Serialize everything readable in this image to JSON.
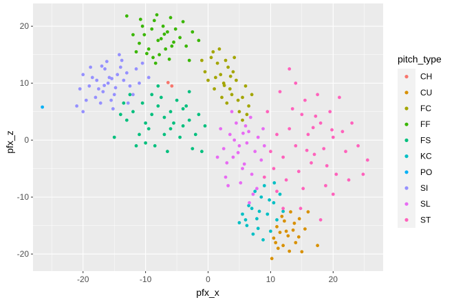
{
  "chart_data": {
    "type": "scatter",
    "xlabel": "pfx_x",
    "ylabel": "pfx_z",
    "xlim": [
      -28,
      28
    ],
    "ylim": [
      -23,
      24
    ],
    "x_ticks": [
      -20,
      -10,
      0,
      10,
      20
    ],
    "y_ticks": [
      -20,
      -10,
      0,
      10,
      20
    ],
    "grid": true,
    "background": "#ebebeb",
    "legend": {
      "title": "pitch_type",
      "position": "right"
    },
    "series": [
      {
        "name": "CH",
        "color": "#F8766D",
        "points": [
          [
            -6.4,
            10.1
          ],
          [
            -5.8,
            9.5
          ]
        ]
      },
      {
        "name": "CU",
        "color": "#D89000",
        "points": [
          [
            11.0,
            -15.2
          ],
          [
            12.5,
            -16.0
          ],
          [
            13.8,
            -14.6
          ],
          [
            10.5,
            -17.2
          ],
          [
            12.0,
            -18.5
          ],
          [
            14.5,
            -17.0
          ],
          [
            11.8,
            -13.4
          ],
          [
            13.0,
            -19.5
          ],
          [
            10.2,
            -20.8
          ],
          [
            15.5,
            -15.6
          ],
          [
            12.8,
            -16.8
          ],
          [
            11.5,
            -16.2
          ],
          [
            14.0,
            -18.0
          ],
          [
            13.2,
            -12.6
          ],
          [
            16.0,
            -12.6
          ],
          [
            15.0,
            -19.6
          ],
          [
            12.2,
            -14.2
          ],
          [
            10.8,
            -18.0
          ],
          [
            13.6,
            -15.8
          ],
          [
            14.6,
            -13.8
          ],
          [
            17.5,
            -18.5
          ],
          [
            11.2,
            -19.0
          ]
        ]
      },
      {
        "name": "FC",
        "color": "#A3A500",
        "points": [
          [
            2.0,
            11.5
          ],
          [
            3.5,
            9.0
          ],
          [
            1.5,
            13.5
          ],
          [
            4.0,
            12.0
          ],
          [
            5.5,
            7.5
          ],
          [
            2.5,
            10.0
          ],
          [
            0.5,
            14.5
          ],
          [
            3.0,
            6.5
          ],
          [
            4.5,
            10.5
          ],
          [
            6.0,
            9.5
          ],
          [
            1.0,
            9.0
          ],
          [
            2.8,
            14.0
          ],
          [
            -0.5,
            12.0
          ],
          [
            5.0,
            5.0
          ],
          [
            3.8,
            8.0
          ],
          [
            1.8,
            16.0
          ],
          [
            6.5,
            6.0
          ],
          [
            2.2,
            7.5
          ],
          [
            0.0,
            10.5
          ],
          [
            4.2,
            14.5
          ],
          [
            7.0,
            8.0
          ],
          [
            3.2,
            12.8
          ],
          [
            1.2,
            11.0
          ],
          [
            5.5,
            3.5
          ],
          [
            2.6,
            9.6
          ],
          [
            4.8,
            7.0
          ],
          [
            0.8,
            15.5
          ],
          [
            3.6,
            11.2
          ],
          [
            6.2,
            4.5
          ],
          [
            -1.0,
            14.0
          ]
        ]
      },
      {
        "name": "FF",
        "color": "#39B600",
        "points": [
          [
            -8.0,
            17.5
          ],
          [
            -6.5,
            19.0
          ],
          [
            -9.5,
            16.0
          ],
          [
            -7.2,
            20.0
          ],
          [
            -5.8,
            16.5
          ],
          [
            -10.2,
            18.5
          ],
          [
            -8.6,
            21.0
          ],
          [
            -4.5,
            18.0
          ],
          [
            -7.8,
            15.0
          ],
          [
            -11.0,
            17.0
          ],
          [
            -6.0,
            21.5
          ],
          [
            -9.0,
            19.5
          ],
          [
            -3.5,
            16.5
          ],
          [
            -7.5,
            17.8
          ],
          [
            -8.8,
            14.5
          ],
          [
            -5.2,
            19.5
          ],
          [
            -10.5,
            20.0
          ],
          [
            -12.0,
            18.5
          ],
          [
            -2.5,
            19.0
          ],
          [
            -6.8,
            16.0
          ],
          [
            -9.8,
            15.2
          ],
          [
            -4.0,
            20.8
          ],
          [
            -8.2,
            22.0
          ],
          [
            -13.0,
            21.8
          ],
          [
            -11.5,
            15.5
          ],
          [
            -7.0,
            18.6
          ],
          [
            -5.5,
            17.2
          ],
          [
            -3.0,
            14.0
          ],
          [
            -1.5,
            17.5
          ],
          [
            -8.4,
            13.5
          ],
          [
            -6.2,
            14.2
          ],
          [
            -10.8,
            21.2
          ]
        ]
      },
      {
        "name": "FS",
        "color": "#00BF7D",
        "points": [
          [
            -12.0,
            5.0
          ],
          [
            -10.0,
            3.0
          ],
          [
            -8.0,
            6.0
          ],
          [
            -6.0,
            2.0
          ],
          [
            -4.0,
            5.5
          ],
          [
            -11.0,
            1.0
          ],
          [
            -9.0,
            8.0
          ],
          [
            -7.0,
            4.0
          ],
          [
            -5.0,
            7.0
          ],
          [
            -3.0,
            3.5
          ],
          [
            -13.0,
            3.5
          ],
          [
            -8.5,
            -1.0
          ],
          [
            -2.0,
            1.0
          ],
          [
            -6.5,
            -2.0
          ],
          [
            -10.5,
            6.5
          ],
          [
            -4.5,
            0.5
          ],
          [
            -12.5,
            8.0
          ],
          [
            -1.5,
            4.5
          ],
          [
            -9.5,
            2.0
          ],
          [
            -7.5,
            7.5
          ],
          [
            -3.5,
            6.0
          ],
          [
            -0.5,
            2.5
          ],
          [
            -11.5,
            -1.0
          ],
          [
            -5.5,
            3.0
          ],
          [
            -14.0,
            4.5
          ],
          [
            -8.0,
            9.5
          ],
          [
            -2.5,
            -1.5
          ],
          [
            -6.0,
            5.0
          ],
          [
            -15.0,
            0.5
          ],
          [
            -1.0,
            -2.0
          ],
          [
            -10.0,
            -0.5
          ],
          [
            -4.0,
            2.5
          ],
          [
            -9.0,
            4.5
          ],
          [
            -7.0,
            1.0
          ],
          [
            -13.5,
            6.5
          ],
          [
            -3.0,
            8.5
          ]
        ]
      },
      {
        "name": "KC",
        "color": "#00BFC4",
        "points": [
          [
            7.0,
            -12.0
          ],
          [
            8.5,
            -10.0
          ],
          [
            6.0,
            -14.0
          ],
          [
            9.5,
            -13.0
          ],
          [
            10.5,
            -11.0
          ],
          [
            7.5,
            -9.0
          ],
          [
            8.0,
            -15.5
          ],
          [
            9.0,
            -8.0
          ],
          [
            6.5,
            -11.5
          ],
          [
            11.0,
            -14.0
          ],
          [
            5.5,
            -13.0
          ],
          [
            10.0,
            -16.0
          ],
          [
            8.2,
            -12.5
          ],
          [
            7.2,
            -16.5
          ],
          [
            9.8,
            -10.5
          ],
          [
            11.5,
            -9.5
          ],
          [
            6.2,
            -15.0
          ],
          [
            12.0,
            -12.5
          ],
          [
            5.0,
            -14.5
          ],
          [
            8.8,
            -17.5
          ],
          [
            10.6,
            -7.5
          ],
          [
            7.8,
            -13.8
          ]
        ]
      },
      {
        "name": "PO",
        "color": "#00B0F6",
        "points": [
          [
            -26.5,
            5.8
          ]
        ]
      },
      {
        "name": "SI",
        "color": "#9590FF",
        "points": [
          [
            -16.0,
            10.0
          ],
          [
            -14.5,
            11.5
          ],
          [
            -17.5,
            9.0
          ],
          [
            -15.0,
            8.0
          ],
          [
            -13.5,
            10.5
          ],
          [
            -18.5,
            11.0
          ],
          [
            -16.5,
            12.5
          ],
          [
            -15.5,
            7.0
          ],
          [
            -12.5,
            9.5
          ],
          [
            -17.0,
            13.0
          ],
          [
            -19.0,
            9.5
          ],
          [
            -14.0,
            12.8
          ],
          [
            -16.8,
            8.5
          ],
          [
            -13.0,
            11.8
          ],
          [
            -18.0,
            7.5
          ],
          [
            -15.8,
            11.0
          ],
          [
            -11.5,
            12.5
          ],
          [
            -20.0,
            11.5
          ],
          [
            -14.8,
            9.2
          ],
          [
            -17.8,
            10.5
          ],
          [
            -12.0,
            8.0
          ],
          [
            -16.2,
            13.8
          ],
          [
            -19.5,
            7.0
          ],
          [
            -13.8,
            14.0
          ],
          [
            -11.0,
            10.0
          ],
          [
            -20.5,
            9.0
          ],
          [
            -15.2,
            5.5
          ],
          [
            -10.5,
            13.5
          ],
          [
            -17.2,
            6.5
          ],
          [
            -18.8,
            12.8
          ],
          [
            -12.8,
            6.5
          ],
          [
            -14.2,
            15.0
          ],
          [
            -21.0,
            6.0
          ],
          [
            -9.5,
            11.0
          ],
          [
            -16.6,
            9.6
          ],
          [
            -15.4,
            10.8
          ],
          [
            -20.0,
            5.0
          ]
        ]
      },
      {
        "name": "SL",
        "color": "#E76BF3",
        "points": [
          [
            5.0,
            -1.0
          ],
          [
            6.5,
            1.5
          ],
          [
            4.0,
            -3.0
          ],
          [
            7.5,
            -2.0
          ],
          [
            3.5,
            1.0
          ],
          [
            8.0,
            0.5
          ],
          [
            5.5,
            -5.0
          ],
          [
            6.0,
            2.5
          ],
          [
            2.5,
            -1.5
          ],
          [
            7.0,
            -6.0
          ],
          [
            4.5,
            3.0
          ],
          [
            8.5,
            -3.5
          ],
          [
            3.0,
            -4.0
          ],
          [
            6.8,
            4.0
          ],
          [
            5.2,
            -7.5
          ],
          [
            2.0,
            2.0
          ],
          [
            9.0,
            -1.0
          ],
          [
            4.8,
            -2.2
          ],
          [
            7.8,
            -8.5
          ],
          [
            3.8,
            5.0
          ],
          [
            6.2,
            -0.5
          ],
          [
            2.8,
            -6.5
          ],
          [
            8.8,
            2.0
          ],
          [
            5.8,
            -4.2
          ],
          [
            4.2,
            0.0
          ],
          [
            1.5,
            -3.0
          ],
          [
            7.2,
            -9.5
          ],
          [
            3.2,
            -8.0
          ],
          [
            6.6,
            -11.0
          ],
          [
            5.6,
            1.2
          ]
        ]
      },
      {
        "name": "ST",
        "color": "#FF62BC",
        "points": [
          [
            16.0,
            1.0
          ],
          [
            18.0,
            3.0
          ],
          [
            14.0,
            -1.0
          ],
          [
            20.0,
            0.5
          ],
          [
            17.0,
            -2.5
          ],
          [
            15.0,
            4.5
          ],
          [
            19.5,
            5.0
          ],
          [
            13.0,
            2.0
          ],
          [
            21.5,
            1.5
          ],
          [
            16.5,
            -4.0
          ],
          [
            18.5,
            -1.5
          ],
          [
            12.0,
            -3.0
          ],
          [
            22.0,
            -2.0
          ],
          [
            15.5,
            7.0
          ],
          [
            14.5,
            -5.5
          ],
          [
            19.0,
            -4.5
          ],
          [
            11.0,
            1.0
          ],
          [
            23.0,
            3.0
          ],
          [
            17.5,
            8.0
          ],
          [
            13.5,
            5.5
          ],
          [
            20.5,
            -6.0
          ],
          [
            10.0,
            -2.0
          ],
          [
            24.0,
            -1.0
          ],
          [
            16.8,
            2.2
          ],
          [
            12.5,
            -7.0
          ],
          [
            9.5,
            5.0
          ],
          [
            21.0,
            7.5
          ],
          [
            15.2,
            -8.5
          ],
          [
            25.5,
            -3.5
          ],
          [
            11.5,
            8.5
          ],
          [
            18.8,
            -8.0
          ],
          [
            14.0,
            10.0
          ],
          [
            13.0,
            12.5
          ],
          [
            11.0,
            -9.0
          ],
          [
            22.5,
            -7.0
          ],
          [
            17.2,
            4.2
          ],
          [
            19.8,
            1.8
          ],
          [
            15.8,
            -1.8
          ],
          [
            24.8,
            -6.0
          ],
          [
            9.0,
            -6.5
          ],
          [
            12.0,
            -12.0
          ],
          [
            10.5,
            -5.0
          ],
          [
            20.0,
            -9.5
          ],
          [
            14.8,
            -12.0
          ],
          [
            18.0,
            -14.0
          ]
        ]
      }
    ]
  }
}
